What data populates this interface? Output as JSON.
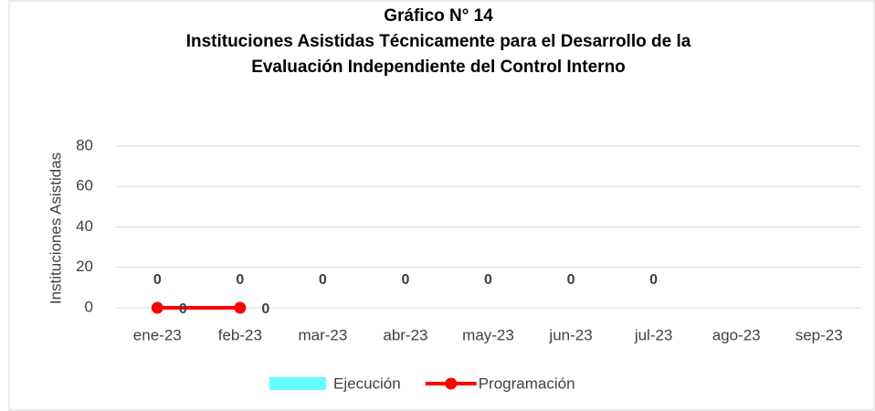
{
  "chart_data": {
    "type": "bar",
    "title": [
      "Gráfico N° 14",
      "Instituciones Asistidas Técnicamente para el Desarrollo de la",
      "Evaluación Independiente del Control Interno"
    ],
    "y_label": "Instituciones Asistidas",
    "categories": [
      "ene-23",
      "feb-23",
      "mar-23",
      "abr-23",
      "may-23",
      "jun-23",
      "jul-23",
      "ago-23",
      "sep-23"
    ],
    "series": [
      {
        "name": "Ejecución",
        "type": "bar",
        "color": "#66ffff",
        "values": [
          0,
          0,
          0,
          0,
          0,
          0,
          0,
          null,
          null
        ]
      },
      {
        "name": "Programación",
        "type": "line",
        "color": "#ff0000",
        "values": [
          0,
          0,
          null,
          null,
          null,
          null,
          null,
          null,
          null
        ]
      }
    ],
    "ylim": [
      0,
      80
    ],
    "yticks": [
      0,
      20,
      40,
      60,
      80
    ],
    "grid": true,
    "legend": "bottom"
  }
}
